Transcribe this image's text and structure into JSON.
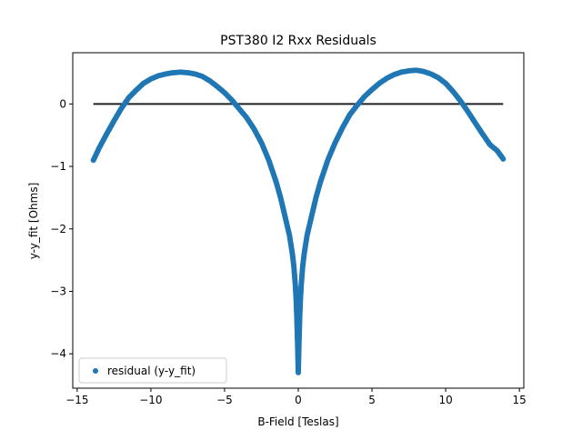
{
  "chart_data": {
    "type": "scatter",
    "title": "PST380 I2 Rxx Residuals",
    "xlabel": "B-Field [Teslas]",
    "ylabel": "y-y_fit [Ohms]",
    "xlim": [
      -15.3,
      15.3
    ],
    "ylim": [
      -4.55,
      0.82
    ],
    "xticks": [
      -15,
      -10,
      -5,
      0,
      5,
      10,
      15
    ],
    "xtick_labels": [
      "−15",
      "−10",
      "−5",
      "0",
      "5",
      "10",
      "15"
    ],
    "yticks": [
      0,
      -1,
      -2,
      -3,
      -4
    ],
    "ytick_labels": [
      "0",
      "−1",
      "−2",
      "−3",
      "−4"
    ],
    "grid": false,
    "legend": {
      "position": "lower-left",
      "entries": [
        "residual (y-y_fit)"
      ]
    },
    "reference_line": {
      "x": [
        -13.9,
        13.9
      ],
      "y": [
        0,
        0
      ],
      "color": "#222222"
    },
    "series": [
      {
        "name": "residual (y-y_fit)",
        "color": "#1f77b4",
        "x": [
          -13.9,
          -13.5,
          -13,
          -12.5,
          -12,
          -11.5,
          -11,
          -10.5,
          -10,
          -9.5,
          -9,
          -8.5,
          -8,
          -7.5,
          -7,
          -6.5,
          -6,
          -5.5,
          -5,
          -4.5,
          -4,
          -3.5,
          -3,
          -2.5,
          -2,
          -1.5,
          -1.2,
          -1,
          -0.8,
          -0.6,
          -0.5,
          -0.4,
          -0.3,
          -0.25,
          -0.2,
          -0.15,
          -0.1,
          -0.05,
          0,
          0.05,
          0.1,
          0.15,
          0.2,
          0.25,
          0.3,
          0.4,
          0.5,
          0.6,
          0.8,
          1,
          1.2,
          1.5,
          2,
          2.5,
          3,
          3.5,
          4,
          4.5,
          5,
          5.5,
          6,
          6.5,
          7,
          7.5,
          8,
          8.5,
          9,
          9.5,
          10,
          10.5,
          11,
          11.5,
          12,
          12.5,
          13,
          13.5,
          13.9
        ],
        "y": [
          -0.9,
          -0.7,
          -0.48,
          -0.27,
          -0.07,
          0.1,
          0.22,
          0.33,
          0.4,
          0.45,
          0.48,
          0.5,
          0.51,
          0.5,
          0.48,
          0.44,
          0.37,
          0.28,
          0.18,
          0.06,
          -0.08,
          -0.22,
          -0.4,
          -0.62,
          -0.9,
          -1.25,
          -1.5,
          -1.7,
          -1.9,
          -2.1,
          -2.25,
          -2.4,
          -2.6,
          -2.75,
          -2.9,
          -3.1,
          -3.4,
          -3.8,
          -4.3,
          -3.8,
          -3.4,
          -3.1,
          -2.9,
          -2.75,
          -2.6,
          -2.4,
          -2.25,
          -2.1,
          -1.9,
          -1.7,
          -1.5,
          -1.25,
          -0.9,
          -0.62,
          -0.38,
          -0.17,
          -0.02,
          0.12,
          0.23,
          0.33,
          0.41,
          0.47,
          0.51,
          0.53,
          0.54,
          0.52,
          0.48,
          0.42,
          0.33,
          0.2,
          0.05,
          -0.12,
          -0.3,
          -0.48,
          -0.65,
          -0.75,
          -0.88
        ]
      }
    ]
  }
}
